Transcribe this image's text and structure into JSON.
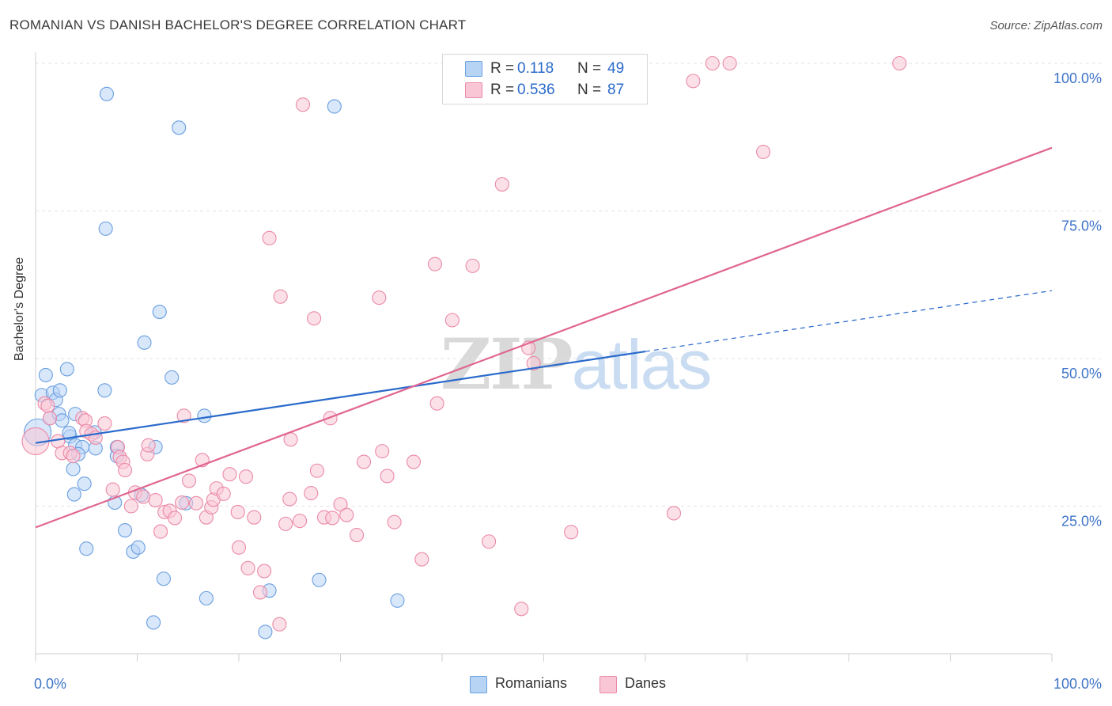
{
  "title": "ROMANIAN VS DANISH BACHELOR'S DEGREE CORRELATION CHART",
  "source": "Source: ZipAtlas.com",
  "watermark": {
    "part1": "ZIP",
    "part2": "atlas"
  },
  "legend": {
    "r_label": "R =",
    "n_label": "N =",
    "rows": [
      {
        "r": "0.118",
        "n": "49",
        "color": "#b8d4f5",
        "border": "#6a9fe0"
      },
      {
        "r": "0.536",
        "n": "87",
        "color": "#f9c6d6",
        "border": "#ea8aa8"
      }
    ]
  },
  "chart_data": {
    "type": "scatter",
    "title": "ROMANIAN VS DANISH BACHELOR'S DEGREE CORRELATION CHART",
    "xlabel": "",
    "ylabel": "Bachelor's Degree",
    "xlim": [
      0,
      100
    ],
    "ylim": [
      0,
      100
    ],
    "x_tick_labels": [
      "0.0%",
      "100.0%"
    ],
    "y_tick_labels": [
      "25.0%",
      "50.0%",
      "75.0%",
      "100.0%"
    ],
    "y_ticks": [
      25,
      50,
      75,
      100
    ],
    "grid": "horizontal dashed",
    "legend_position": "bottom-center",
    "series": [
      {
        "name": "Romanians",
        "color": "#6a9fe0",
        "fill": "#b8d4f5",
        "line_color": "#2a6acb",
        "trend": {
          "x0": 0,
          "y0": 35.7,
          "x1": 60,
          "y1": 51.2,
          "x_dash_end": 100,
          "y_dash_end": 61.5
        },
        "points": [
          [
            0.2,
            37.5,
            1
          ],
          [
            0.6,
            43.8,
            0
          ],
          [
            1.0,
            47.2,
            0
          ],
          [
            1.7,
            44.2,
            0
          ],
          [
            1.4,
            39.9,
            0
          ],
          [
            2.0,
            43.0,
            0
          ],
          [
            2.3,
            40.6,
            0
          ],
          [
            2.4,
            44.6,
            0
          ],
          [
            2.6,
            39.5,
            0
          ],
          [
            3.1,
            48.2,
            0
          ],
          [
            3.4,
            36.8,
            0
          ],
          [
            3.9,
            40.6,
            0
          ],
          [
            3.3,
            37.4,
            0
          ],
          [
            3.9,
            35.3,
            0
          ],
          [
            4.6,
            35.0,
            0
          ],
          [
            4.2,
            33.8,
            0
          ],
          [
            5.8,
            37.5,
            0
          ],
          [
            5.9,
            34.8,
            0
          ],
          [
            6.8,
            44.6,
            0
          ],
          [
            6.9,
            72.0,
            0
          ],
          [
            7.0,
            94.8,
            0
          ],
          [
            8.0,
            35.0,
            0
          ],
          [
            8.0,
            33.5,
            0
          ],
          [
            7.8,
            25.6,
            0
          ],
          [
            3.7,
            31.3,
            0
          ],
          [
            3.8,
            27.0,
            0
          ],
          [
            5.0,
            17.8,
            0
          ],
          [
            4.8,
            28.8,
            0
          ],
          [
            8.8,
            20.9,
            0
          ],
          [
            9.6,
            17.3,
            0
          ],
          [
            10.1,
            18.0,
            0
          ],
          [
            10.4,
            26.9,
            0
          ],
          [
            10.7,
            52.7,
            0
          ],
          [
            11.8,
            35.0,
            0
          ],
          [
            12.2,
            57.9,
            0
          ],
          [
            12.6,
            12.7,
            0
          ],
          [
            11.6,
            5.3,
            0
          ],
          [
            13.4,
            46.8,
            0
          ],
          [
            14.1,
            89.1,
            0
          ],
          [
            14.8,
            25.5,
            0
          ],
          [
            16.6,
            40.3,
            0
          ],
          [
            16.8,
            9.4,
            0
          ],
          [
            22.6,
            3.7,
            0
          ],
          [
            23.0,
            10.7,
            0
          ],
          [
            27.9,
            12.5,
            0
          ],
          [
            29.4,
            92.7,
            0
          ],
          [
            35.6,
            9.0,
            0
          ],
          [
            51.2,
            100.0,
            0
          ],
          [
            57.0,
            100.0,
            0
          ]
        ]
      },
      {
        "name": "Danes",
        "color": "#ea8aa8",
        "fill": "#f9c6d6",
        "line_color": "#e06590",
        "trend": {
          "x0": 0,
          "y0": 21.4,
          "x1": 100,
          "y1": 85.7
        },
        "points": [
          [
            0.0,
            36.0,
            1
          ],
          [
            0.9,
            42.4,
            0
          ],
          [
            1.2,
            42.0,
            0
          ],
          [
            1.4,
            39.9,
            0
          ],
          [
            2.2,
            36.0,
            0
          ],
          [
            2.6,
            34.0,
            0
          ],
          [
            3.4,
            34.0,
            0
          ],
          [
            3.7,
            33.5,
            0
          ],
          [
            4.6,
            39.9,
            0
          ],
          [
            4.9,
            39.5,
            0
          ],
          [
            5.0,
            37.7,
            0
          ],
          [
            5.5,
            37.2,
            0
          ],
          [
            5.9,
            36.6,
            0
          ],
          [
            6.8,
            39.0,
            0
          ],
          [
            7.6,
            27.8,
            0
          ],
          [
            8.1,
            35.0,
            0
          ],
          [
            8.3,
            33.3,
            0
          ],
          [
            8.6,
            32.5,
            0
          ],
          [
            8.8,
            31.1,
            0
          ],
          [
            9.4,
            25.0,
            0
          ],
          [
            9.8,
            27.3,
            0
          ],
          [
            10.6,
            26.6,
            0
          ],
          [
            11.0,
            33.8,
            0
          ],
          [
            11.1,
            35.3,
            0
          ],
          [
            11.8,
            26.0,
            0
          ],
          [
            12.3,
            20.7,
            0
          ],
          [
            12.7,
            24.0,
            0
          ],
          [
            13.2,
            24.2,
            0
          ],
          [
            13.7,
            23.0,
            0
          ],
          [
            14.4,
            25.6,
            0
          ],
          [
            14.6,
            40.3,
            0
          ],
          [
            15.1,
            29.3,
            0
          ],
          [
            15.8,
            25.5,
            0
          ],
          [
            16.4,
            32.8,
            0
          ],
          [
            16.8,
            23.1,
            0
          ],
          [
            17.3,
            24.8,
            0
          ],
          [
            17.5,
            26.1,
            0
          ],
          [
            17.8,
            28.0,
            0
          ],
          [
            18.5,
            27.1,
            0
          ],
          [
            19.1,
            30.4,
            0
          ],
          [
            19.9,
            24.0,
            0
          ],
          [
            20.0,
            18.0,
            0
          ],
          [
            20.7,
            30.0,
            0
          ],
          [
            20.9,
            14.5,
            0
          ],
          [
            21.5,
            23.1,
            0
          ],
          [
            22.1,
            10.4,
            0
          ],
          [
            22.5,
            14.0,
            0
          ],
          [
            23.0,
            70.4,
            0
          ],
          [
            24.0,
            5.0,
            0
          ],
          [
            24.1,
            60.5,
            0
          ],
          [
            24.6,
            22.0,
            0
          ],
          [
            25.0,
            26.2,
            0
          ],
          [
            25.1,
            36.3,
            0
          ],
          [
            26.0,
            22.5,
            0
          ],
          [
            26.3,
            93.0,
            0
          ],
          [
            27.1,
            27.2,
            0
          ],
          [
            27.4,
            56.8,
            0
          ],
          [
            27.7,
            31.0,
            0
          ],
          [
            28.4,
            23.1,
            0
          ],
          [
            29.0,
            39.9,
            0
          ],
          [
            29.2,
            23.0,
            0
          ],
          [
            30.0,
            25.3,
            0
          ],
          [
            30.6,
            23.5,
            0
          ],
          [
            31.6,
            20.1,
            0
          ],
          [
            32.3,
            32.5,
            0
          ],
          [
            33.8,
            60.3,
            0
          ],
          [
            34.1,
            34.3,
            0
          ],
          [
            34.6,
            30.1,
            0
          ],
          [
            35.3,
            22.3,
            0
          ],
          [
            37.2,
            32.5,
            0
          ],
          [
            38.0,
            16.0,
            0
          ],
          [
            39.3,
            66.0,
            0
          ],
          [
            39.5,
            42.4,
            0
          ],
          [
            41.0,
            56.5,
            0
          ],
          [
            43.0,
            65.7,
            0
          ],
          [
            44.6,
            19.0,
            0
          ],
          [
            45.9,
            79.5,
            0
          ],
          [
            47.8,
            7.6,
            0
          ],
          [
            48.5,
            51.8,
            0
          ],
          [
            49.0,
            49.2,
            0
          ],
          [
            52.7,
            20.6,
            0
          ],
          [
            62.8,
            23.8,
            0
          ],
          [
            64.7,
            97.0,
            0
          ],
          [
            66.6,
            100.0,
            0
          ],
          [
            68.3,
            100.0,
            0
          ],
          [
            71.6,
            85.0,
            0
          ],
          [
            85.0,
            100.0,
            0
          ]
        ]
      }
    ]
  }
}
